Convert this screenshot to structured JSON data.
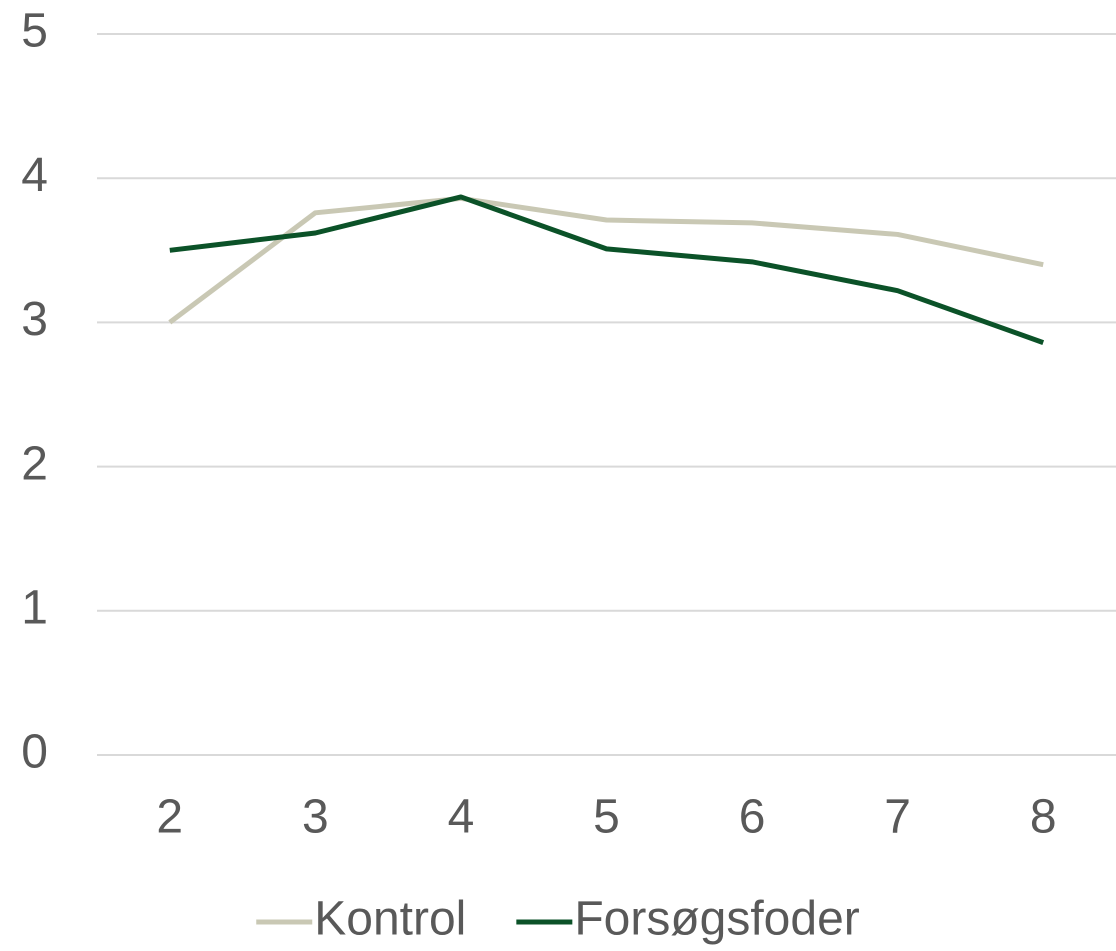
{
  "chart_data": {
    "type": "line",
    "categories": [
      "2",
      "3",
      "4",
      "5",
      "6",
      "7",
      "8"
    ],
    "series": [
      {
        "name": "Kontrol",
        "color": "#c9c8b4",
        "values": [
          3.0,
          3.76,
          3.86,
          3.71,
          3.69,
          3.61,
          3.4
        ]
      },
      {
        "name": "Forsøgsfoder",
        "color": "#0b5228",
        "values": [
          3.5,
          3.62,
          3.87,
          3.51,
          3.42,
          3.22,
          2.86
        ]
      }
    ],
    "ylim": [
      0,
      5
    ],
    "yticks": [
      0,
      1,
      2,
      3,
      4,
      5
    ],
    "grid": true,
    "legend": "bottom"
  }
}
